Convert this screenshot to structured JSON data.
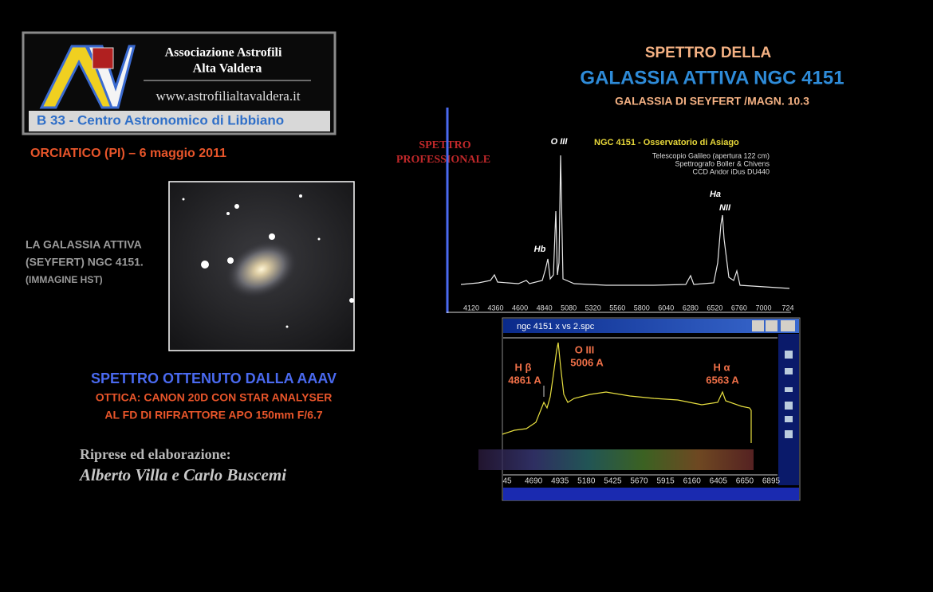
{
  "logo": {
    "name_line1": "Associazione Astrofili",
    "name_line2": "Alta Valdera",
    "url": "www.astrofilialtavaldera.it",
    "subtitle": "B 33 -  Centro Astronomico di Libbiano"
  },
  "location_date": "ORCIATICO (PI) – 6 maggio 2011",
  "galaxy_caption": [
    "LA   GALASSIA ATTIVA",
    "(SEYFERT)  NGC 4151.",
    "(IMMAGINE  HST)"
  ],
  "title": {
    "line1": "SPETTRO  DELLA",
    "line2": "GALASSIA ATTIVA NGC 4151",
    "line3": "GALASSIA DI SEYFERT /MAGN.  10.3"
  },
  "professional": {
    "label": [
      "SPETTRO",
      "PROFESSIONALE"
    ],
    "heading": "NGC 4151 - Osservatorio di Asiago",
    "details": [
      "Telescopio Galileo (apertura 122 cm)",
      "Spettrografo Boller & Chivens",
      "CCD Andor iDus DU440"
    ],
    "lines": {
      "oiii": "O III",
      "hb": "Hb",
      "ha": "Ha",
      "nii": "NII"
    },
    "x_labels": [
      "4120",
      "4360",
      "4600",
      "4840",
      "5080",
      "5320",
      "5560",
      "5800",
      "6040",
      "6280",
      "6520",
      "6760",
      "7000",
      "724"
    ]
  },
  "aaav": {
    "heading": "SPETTRO OTTENUTO DALLA AAAV",
    "optics": [
      "OTTICA: CANON 20D CON STAR ANALYSER",
      "AL FD DI RIFRATTORE APO 150mm F/6.7"
    ],
    "credits_label": "Riprese ed elaborazione:",
    "authors": "Alberto Villa e Carlo Buscemi"
  },
  "window": {
    "title": "ngc 4151 x vs 2.spc",
    "lines": [
      {
        "name": "H β",
        "wavelength": "4861 A"
      },
      {
        "name": "O III",
        "wavelength": "5006 A"
      },
      {
        "name": "H α",
        "wavelength": "6563 A"
      }
    ],
    "x_labels": [
      "45",
      "4690",
      "4935",
      "5180",
      "5425",
      "5670",
      "5915",
      "6160",
      "6405",
      "6650",
      "6895"
    ]
  }
}
